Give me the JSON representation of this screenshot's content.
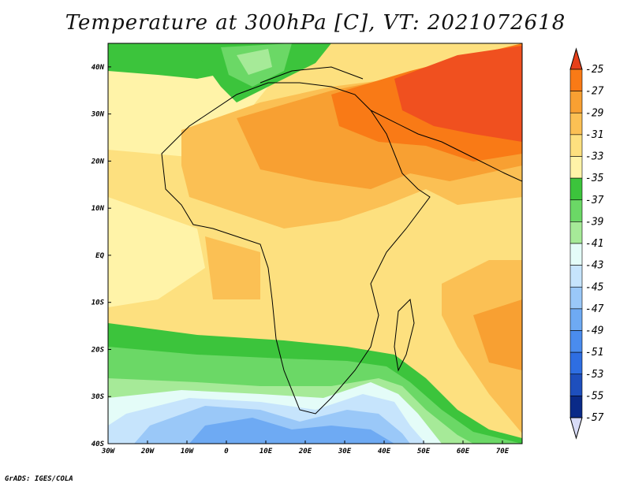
{
  "title": "Temperature at 300hPa [C], VT: 2021072618",
  "credit": "GrADS: IGES/COLA",
  "map": {
    "lon_ticks": [
      "30W",
      "20W",
      "10W",
      "0",
      "10E",
      "20E",
      "30E",
      "40E",
      "50E",
      "60E",
      "70E"
    ],
    "lat_ticks": [
      "40N",
      "30N",
      "20N",
      "10N",
      "EQ",
      "10S",
      "20S",
      "30S",
      "40S"
    ],
    "extent": {
      "lon_min": -30,
      "lon_max": 75,
      "lat_min": -40,
      "lat_max": 45
    }
  },
  "colorbar": {
    "levels": [
      "-25",
      "-27",
      "-29",
      "-31",
      "-33",
      "-35",
      "-37",
      "-39",
      "-41",
      "-43",
      "-45",
      "-47",
      "-49",
      "-51",
      "-53",
      "-55",
      "-57"
    ],
    "colors": [
      "#f0501f",
      "#f97a16",
      "#f8a032",
      "#fbc054",
      "#fde07f",
      "#fff3a8",
      "#3cc43c",
      "#6bd866",
      "#a6ea98",
      "#e4fcf8",
      "#c6e4fc",
      "#9ac8f8",
      "#6eaaf3",
      "#4a8cee",
      "#2e6ee2",
      "#1e4fbd",
      "#0a2a88"
    ],
    "over_color": "#e6401a",
    "under_color": "#d8dcf8"
  }
}
